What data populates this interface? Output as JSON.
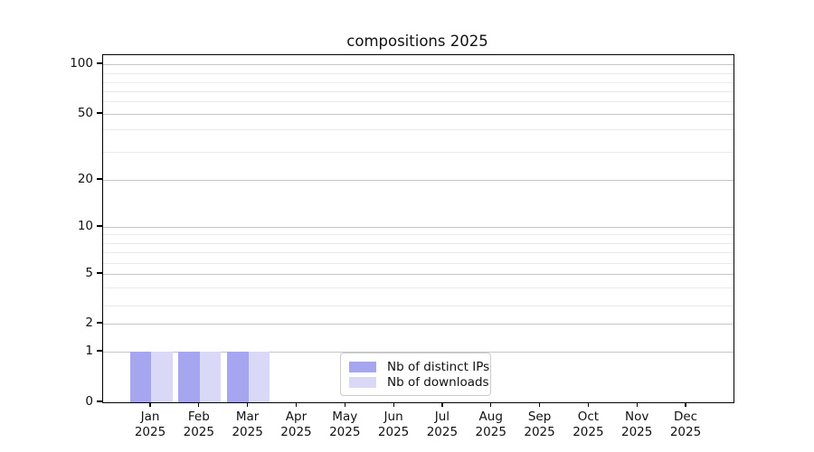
{
  "title": "compositions 2025",
  "chart_data": {
    "type": "bar",
    "title": "compositions 2025",
    "categories": [
      "Jan 2025",
      "Feb 2025",
      "Mar 2025",
      "Apr 2025",
      "May 2025",
      "Jun 2025",
      "Jul 2025",
      "Aug 2025",
      "Sep 2025",
      "Oct 2025",
      "Nov 2025",
      "Dec 2025"
    ],
    "x_tick_months": [
      "Jan",
      "Feb",
      "Mar",
      "Apr",
      "May",
      "Jun",
      "Jul",
      "Aug",
      "Sep",
      "Oct",
      "Nov",
      "Dec"
    ],
    "x_tick_year": "2025",
    "series": [
      {
        "name": "Nb of distinct IPs",
        "color": "#a5a5f0",
        "values": [
          1,
          1,
          1,
          0,
          0,
          0,
          0,
          0,
          0,
          0,
          0,
          0
        ]
      },
      {
        "name": "Nb of downloads",
        "color": "#d9d9f7",
        "values": [
          1,
          1,
          1,
          0,
          0,
          0,
          0,
          0,
          0,
          0,
          0,
          0
        ]
      }
    ],
    "xlabel": "",
    "ylabel": "",
    "y_axis": {
      "tick_labels": [
        0,
        1,
        2,
        5,
        10,
        20,
        50,
        100
      ],
      "major_gridline_values": [
        1,
        2,
        5,
        10,
        20,
        50,
        100
      ],
      "minor_gridline_values": [
        3,
        4,
        6,
        7,
        8,
        9,
        30,
        40,
        60,
        70,
        80,
        90
      ],
      "scale": "log-like with linear 0-1 segment",
      "ylim": [
        0,
        115
      ]
    },
    "legend": {
      "position": "bottom-center-inside",
      "entries": [
        "Nb of distinct IPs",
        "Nb of downloads"
      ]
    },
    "grid": true
  },
  "colors": {
    "major_grid": "#c6c6c6",
    "minor_grid": "#eaeaea",
    "axis": "#000000",
    "text": "#111111",
    "legend_border": "#cccccc",
    "background": "#ffffff"
  }
}
